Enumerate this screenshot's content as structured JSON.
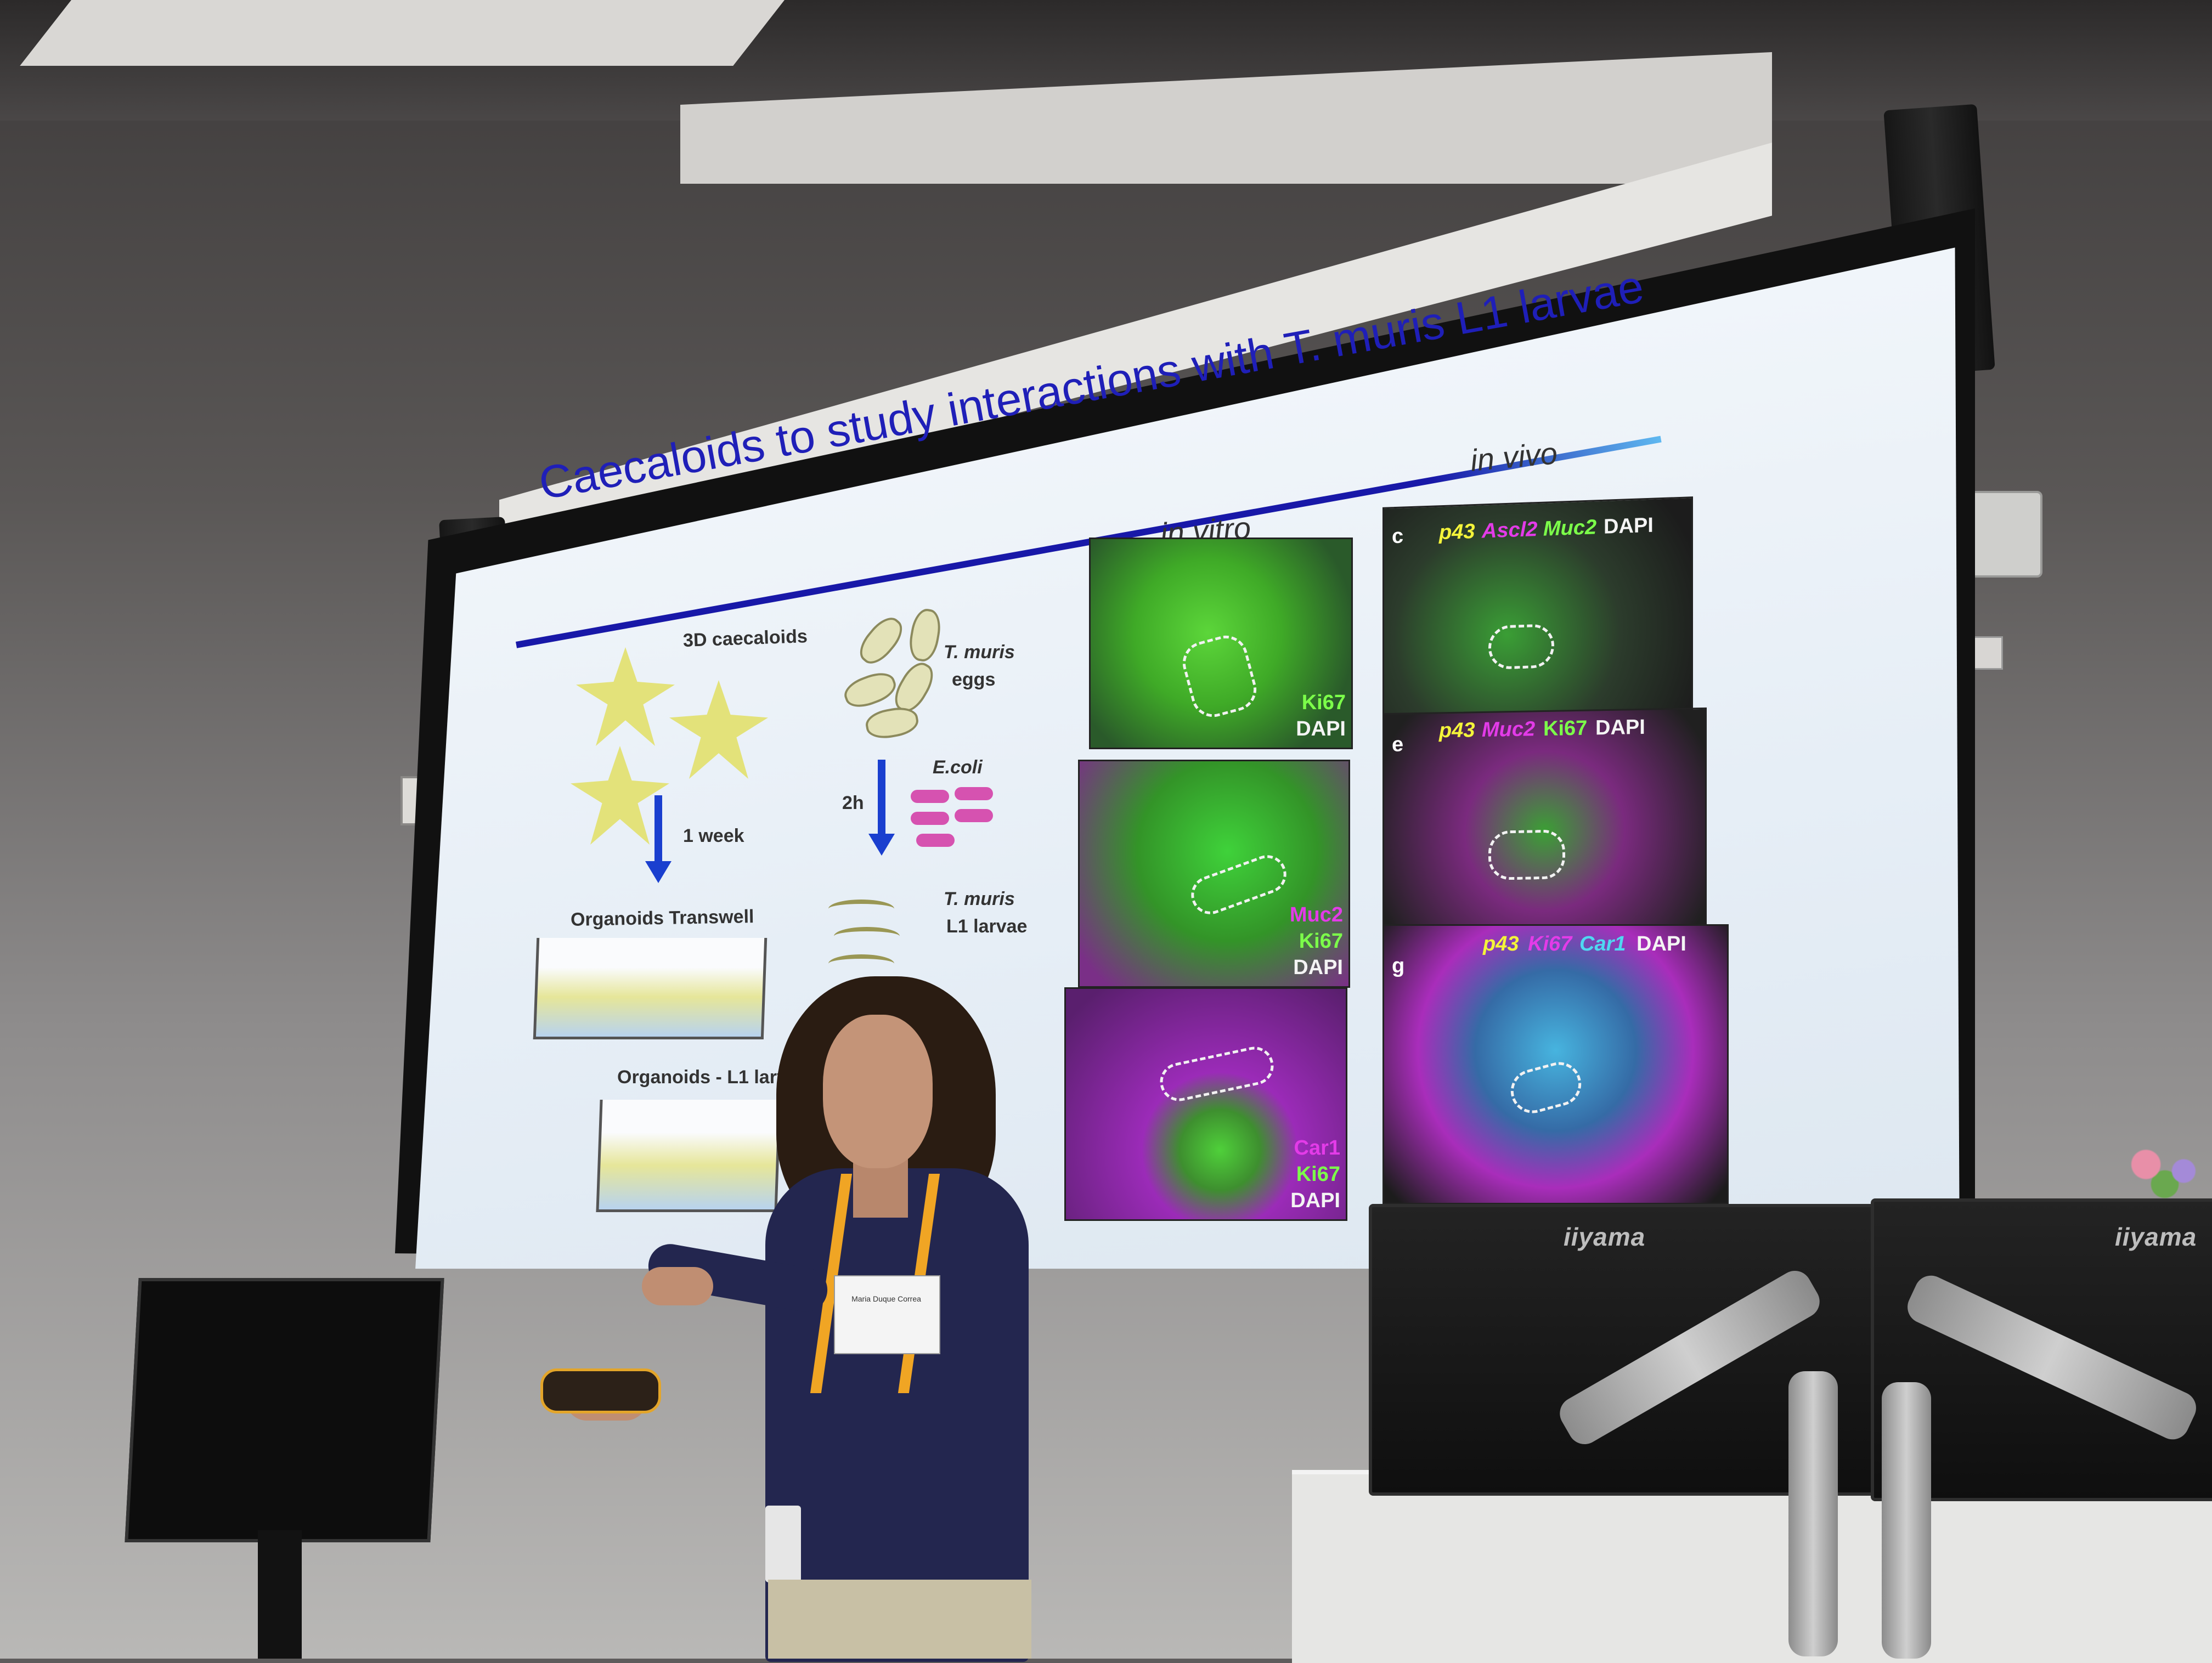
{
  "slide": {
    "title": "Caecaloids to study interactions with T. muris L1 larvae",
    "caption_in_vitro": "in vitro",
    "caption_in_vivo": "in vivo",
    "schematic": {
      "label_3d": "3D caecaloids",
      "label_one_week": "1 week",
      "label_transwell": "Organoids Transwell",
      "label_l1": "Organoids - L1 larva",
      "label_eggs_1": "T. muris",
      "label_eggs_2": "eggs",
      "label_time": "2h",
      "label_ecoli": "E.coli",
      "label_larvae_1": "T. muris",
      "label_larvae_2": "L1 larvae"
    },
    "in_vitro_panels": [
      {
        "stain_1": "Ki67",
        "stain_2": "DAPI"
      },
      {
        "stain_0": "Muc2",
        "stain_1": "Ki67",
        "stain_2": "DAPI"
      },
      {
        "stain_0": "Car1",
        "stain_1": "Ki67",
        "stain_2": "DAPI"
      }
    ],
    "in_vivo_panels": [
      {
        "letter": "c",
        "stains": [
          "p43",
          "Ascl2",
          "Muc2",
          "DAPI"
        ]
      },
      {
        "letter": "e",
        "stains": [
          "p43",
          "Muc2",
          "Ki67",
          "DAPI"
        ]
      },
      {
        "letter": "g",
        "stains": [
          "p43",
          "Ki67",
          "Car1",
          "DAPI"
        ]
      }
    ]
  },
  "monitors": {
    "brand_left": "iiyama",
    "brand_right": "iiyama"
  },
  "badge": {
    "text": "Maria Duque Correa"
  },
  "colors": {
    "title_blue": "#1f1fb8",
    "screen_border_green": "#7fd32c",
    "stain_green": "#7cff4a",
    "stain_magenta": "#e33be8",
    "stain_yellow": "#f4f43a",
    "stain_cyan": "#4fd8f2",
    "lanyard_orange": "#f0a524"
  }
}
